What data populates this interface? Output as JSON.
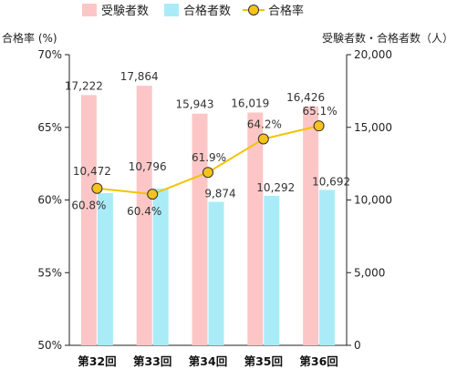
{
  "chart_data": {
    "type": "bar",
    "categories": [
      "第32回",
      "第33回",
      "第34回",
      "第35回",
      "第36回"
    ],
    "series": [
      {
        "name": "受験者数",
        "type": "bar",
        "axis": "right",
        "color": "#fdc6c6",
        "values": [
          17222,
          17864,
          15943,
          16019,
          16426
        ],
        "labels": [
          "17,222",
          "17,864",
          "15,943",
          "16,019",
          "16,426"
        ]
      },
      {
        "name": "合格者数",
        "type": "bar",
        "axis": "right",
        "color": "#a9ecf7",
        "values": [
          10472,
          10796,
          9874,
          10292,
          10692
        ],
        "labels": [
          "10,472",
          "10,796",
          "9,874",
          "10,292",
          "10,692"
        ]
      },
      {
        "name": "合格率",
        "type": "line",
        "axis": "left",
        "color": "#f2c300",
        "marker_fill": "#f6c21c",
        "marker_stroke": "#333333",
        "values": [
          60.8,
          60.4,
          61.9,
          64.2,
          65.1
        ],
        "labels": [
          "60.8%",
          "60.4%",
          "61.9%",
          "64.2%",
          "65.1%"
        ]
      }
    ],
    "y_left": {
      "label": "合格率 (%)",
      "lim": [
        50,
        70
      ],
      "ticks": [
        50,
        55,
        60,
        65,
        70
      ],
      "tick_labels": [
        "50%",
        "55%",
        "60%",
        "65%",
        "70%"
      ]
    },
    "y_right": {
      "label": "受験者数・合格者数（人）",
      "lim": [
        0,
        20000
      ],
      "ticks": [
        0,
        5000,
        10000,
        15000,
        20000
      ],
      "tick_labels": [
        "0",
        "5,000",
        "10,000",
        "15,000",
        "20,000"
      ]
    },
    "grid": false,
    "legend": "top"
  }
}
